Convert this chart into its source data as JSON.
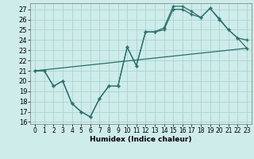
{
  "xlabel": "Humidex (Indice chaleur)",
  "bg_color": "#ceecea",
  "grid_color": "#aad4d2",
  "line_color": "#2a6e6c",
  "xlim": [
    -0.5,
    23.5
  ],
  "ylim": [
    15.8,
    27.6
  ],
  "yticks": [
    16,
    17,
    18,
    19,
    20,
    21,
    22,
    23,
    24,
    25,
    26,
    27
  ],
  "xticks": [
    0,
    1,
    2,
    3,
    4,
    5,
    6,
    7,
    8,
    9,
    10,
    11,
    12,
    13,
    14,
    15,
    16,
    17,
    18,
    19,
    20,
    21,
    22,
    23
  ],
  "line1_x": [
    0,
    23
  ],
  "line1_y": [
    21.0,
    23.2
  ],
  "line2_x": [
    0,
    1,
    2,
    3,
    4,
    5,
    6,
    7,
    8,
    9,
    10,
    11,
    12,
    13,
    14,
    15,
    16,
    17,
    18,
    19,
    20,
    21,
    22,
    23
  ],
  "line2_y": [
    21.0,
    21.0,
    19.5,
    20.0,
    17.8,
    17.0,
    16.5,
    18.3,
    19.5,
    19.5,
    23.3,
    21.5,
    24.8,
    24.8,
    25.2,
    27.3,
    27.3,
    26.8,
    26.2,
    27.1,
    26.1,
    25.0,
    24.2,
    24.0
  ],
  "line3_x": [
    0,
    1,
    2,
    3,
    4,
    5,
    6,
    7,
    8,
    9,
    10,
    11,
    12,
    13,
    14,
    15,
    16,
    17,
    18,
    19,
    20,
    21,
    22,
    23
  ],
  "line3_y": [
    21.0,
    21.0,
    19.5,
    20.0,
    17.8,
    17.0,
    16.5,
    18.3,
    19.5,
    19.5,
    23.3,
    21.5,
    24.8,
    24.8,
    25.0,
    27.0,
    27.0,
    26.5,
    26.2,
    27.1,
    26.0,
    25.0,
    24.2,
    23.2
  ]
}
